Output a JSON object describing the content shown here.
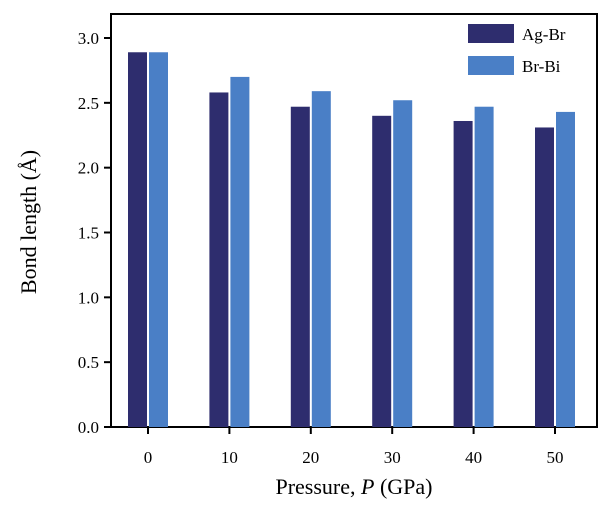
{
  "chart_data": {
    "type": "bar",
    "title": "",
    "xlabel": "Pressure, P (GPa)",
    "xlabel_parts": {
      "prefix": "Pressure, ",
      "variable": "P",
      "suffix": " (GPa)"
    },
    "ylabel": "Bond length (Å)",
    "categories": [
      "0",
      "10",
      "20",
      "30",
      "40",
      "50"
    ],
    "ylim": [
      0,
      3.0
    ],
    "yticks": [
      "0.0",
      "0.5",
      "1.0",
      "1.5",
      "2.0",
      "2.5",
      "3.0"
    ],
    "series": [
      {
        "name": "Ag-Br",
        "color": "#2e2d6e",
        "values": [
          2.89,
          2.58,
          2.47,
          2.4,
          2.36,
          2.31
        ]
      },
      {
        "name": "Br-Bi",
        "color": "#4a7fc6",
        "values": [
          2.89,
          2.7,
          2.59,
          2.52,
          2.47,
          2.43
        ]
      }
    ],
    "legend_position": "top-right",
    "grid": false
  }
}
